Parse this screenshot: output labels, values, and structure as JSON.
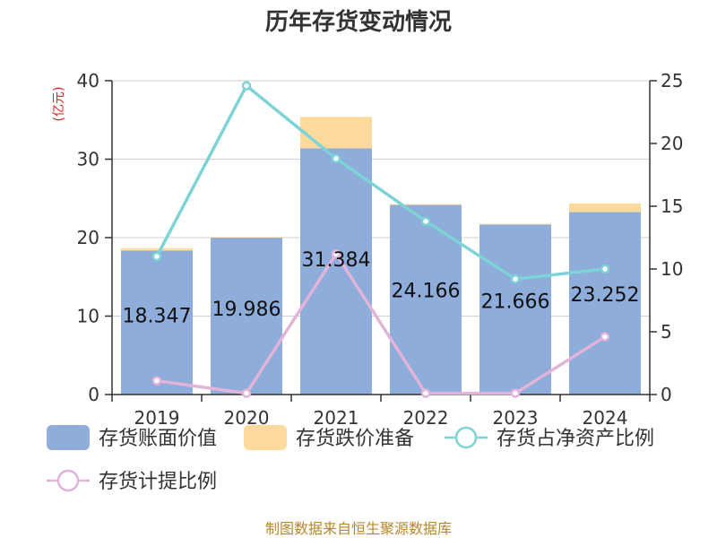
{
  "chart_data": {
    "type": "bar",
    "title": "历年存货变动情况",
    "categories": [
      "2019",
      "2020",
      "2021",
      "2022",
      "2023",
      "2024"
    ],
    "left_axis": {
      "unit": "(亿元)",
      "ylim": [
        0,
        40
      ],
      "ticks": [
        "0",
        "10",
        "20",
        "30",
        "40"
      ]
    },
    "right_axis": {
      "ylim": [
        0,
        25
      ],
      "ticks": [
        "0",
        "5",
        "10",
        "15",
        "20",
        "25"
      ]
    },
    "series": [
      {
        "name": "存货账面价值",
        "type": "bar",
        "axis": "left",
        "color": "#8eadda",
        "values": [
          18.347,
          19.986,
          31.384,
          24.166,
          21.666,
          23.252
        ],
        "labels": [
          "18.347",
          "19.986",
          "31.384",
          "24.166",
          "21.666",
          "23.252"
        ]
      },
      {
        "name": "存货跌价准备",
        "type": "bar-stacked",
        "axis": "left",
        "color": "#fdd99b",
        "values": [
          0.3,
          0.1,
          4.0,
          0.1,
          0.1,
          1.1
        ]
      },
      {
        "name": "存货占净资产比例",
        "type": "line",
        "axis": "right",
        "color": "#7dd3d5",
        "values": [
          11.0,
          24.6,
          18.8,
          13.8,
          9.2,
          10.0
        ]
      },
      {
        "name": "存货计提比例",
        "type": "line",
        "axis": "right",
        "color": "#e2b4d9",
        "values": [
          1.1,
          0.1,
          11.2,
          0.1,
          0.1,
          4.6
        ]
      }
    ],
    "grid": true,
    "legend_position": "bottom"
  },
  "footer": {
    "source": "制图数据来自恒生聚源数据库"
  }
}
